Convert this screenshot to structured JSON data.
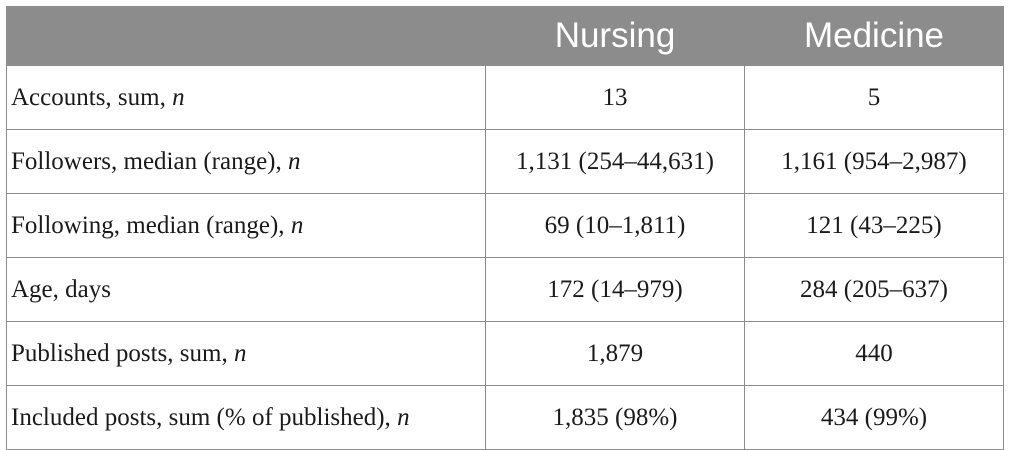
{
  "table": {
    "headers": [
      "",
      "Nursing",
      "Medicine"
    ],
    "rows": [
      {
        "label": "Accounts, sum, ",
        "unit": "n",
        "nursing": "13",
        "medicine": "5"
      },
      {
        "label": "Followers, median (range), ",
        "unit": "n",
        "nursing": "1,131 (254–44,631)",
        "medicine": "1,161 (954–2,987)"
      },
      {
        "label": "Following, median (range), ",
        "unit": "n",
        "nursing": "69 (10–1,811)",
        "medicine": "121 (43–225)"
      },
      {
        "label": "Age, days",
        "unit": "",
        "nursing": "172 (14–979)",
        "medicine": "284 (205–637)"
      },
      {
        "label": "Published posts, sum, ",
        "unit": "n",
        "nursing": "1,879",
        "medicine": "440"
      },
      {
        "label": "Included posts, sum (% of published), ",
        "unit": "n",
        "nursing": "1,835 (98%)",
        "medicine": "434 (99%)"
      }
    ]
  }
}
